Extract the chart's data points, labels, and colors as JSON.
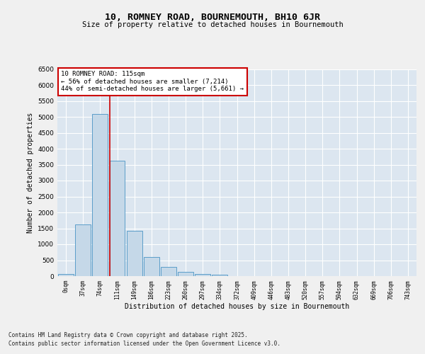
{
  "title": "10, ROMNEY ROAD, BOURNEMOUTH, BH10 6JR",
  "subtitle": "Size of property relative to detached houses in Bournemouth",
  "xlabel": "Distribution of detached houses by size in Bournemouth",
  "ylabel": "Number of detached properties",
  "bar_labels": [
    "0sqm",
    "37sqm",
    "74sqm",
    "111sqm",
    "149sqm",
    "186sqm",
    "223sqm",
    "260sqm",
    "297sqm",
    "334sqm",
    "372sqm",
    "409sqm",
    "446sqm",
    "483sqm",
    "520sqm",
    "557sqm",
    "594sqm",
    "632sqm",
    "669sqm",
    "706sqm",
    "743sqm"
  ],
  "bar_values": [
    70,
    1620,
    5100,
    3620,
    1420,
    610,
    300,
    135,
    70,
    50,
    0,
    0,
    0,
    0,
    0,
    0,
    0,
    0,
    0,
    0,
    0
  ],
  "bar_color": "#c5d8e8",
  "bar_edge_color": "#5b9ec9",
  "vline_x": 3,
  "vline_color": "#cc0000",
  "annotation_text": "10 ROMNEY ROAD: 115sqm\n← 56% of detached houses are smaller (7,214)\n44% of semi-detached houses are larger (5,661) →",
  "annotation_box_color": "#ffffff",
  "annotation_box_edge": "#cc0000",
  "ylim": [
    0,
    6500
  ],
  "yticks": [
    0,
    500,
    1000,
    1500,
    2000,
    2500,
    3000,
    3500,
    4000,
    4500,
    5000,
    5500,
    6000,
    6500
  ],
  "background_color": "#dce6f0",
  "fig_background_color": "#f0f0f0",
  "footer_line1": "Contains HM Land Registry data © Crown copyright and database right 2025.",
  "footer_line2": "Contains public sector information licensed under the Open Government Licence v3.0."
}
